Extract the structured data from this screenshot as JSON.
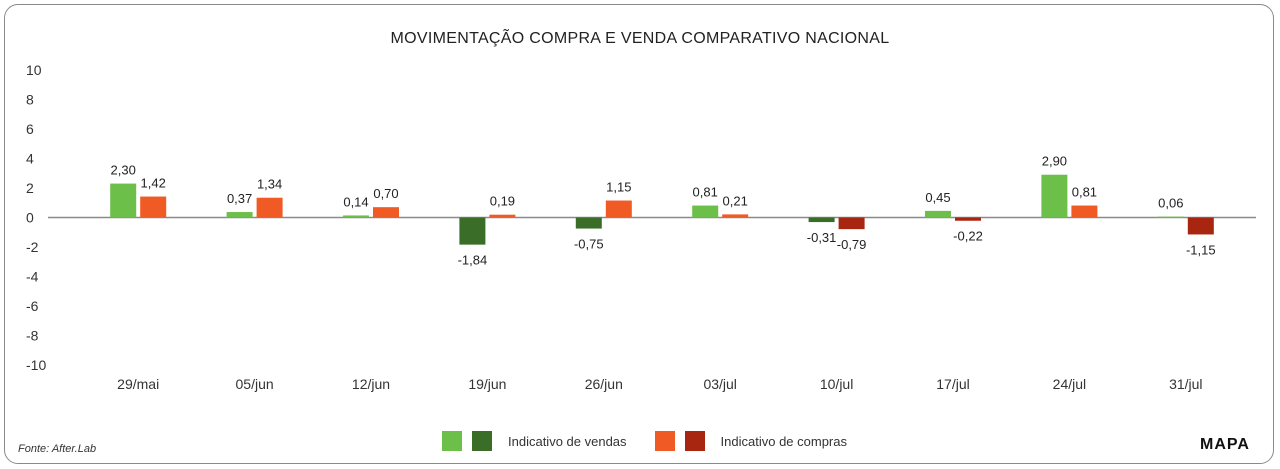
{
  "chart_data": {
    "type": "bar",
    "title": "MOVIMENTAÇÃO COMPRA E VENDA COMPARATIVO NACIONAL",
    "categories": [
      "29/mai",
      "05/jun",
      "12/jun",
      "19/jun",
      "26/jun",
      "03/jul",
      "10/jul",
      "17/jul",
      "24/jul",
      "31/jul"
    ],
    "series": [
      {
        "name": "Indicativo de vendas",
        "values": [
          2.3,
          0.37,
          0.14,
          -1.84,
          -0.75,
          0.81,
          -0.31,
          0.45,
          2.9,
          0.06
        ],
        "value_labels": [
          "2,30",
          "0,37",
          "0,14",
          "-1,84",
          "-0,75",
          "0,81",
          "-0,31",
          "0,45",
          "2,90",
          "0,06"
        ]
      },
      {
        "name": "Indicativo de compras",
        "values": [
          1.42,
          1.34,
          0.7,
          0.19,
          1.15,
          0.21,
          -0.79,
          -0.22,
          0.81,
          -1.15
        ],
        "value_labels": [
          "1,42",
          "1,34",
          "0,70",
          "0,19",
          "1,15",
          "0,21",
          "-0,79",
          "-0,22",
          "0,81",
          "-1,15"
        ]
      }
    ],
    "ylim": [
      -10,
      10
    ],
    "yticks": [
      10,
      8,
      6,
      4,
      2,
      0,
      -2,
      -4,
      -6,
      -8,
      -10
    ],
    "xlabel": "",
    "ylabel": "",
    "legend_position": "bottom"
  },
  "colors": {
    "sales_positive": "#6cc04a",
    "sales_negative": "#3a6e28",
    "purchases_positive": "#f05a24",
    "purchases_negative": "#a8260f",
    "axis": "#8a8a8a"
  },
  "legend": {
    "sales_label": "Indicativo de vendas",
    "purchases_label": "Indicativo de compras"
  },
  "footer": {
    "source": "Fonte: After.Lab",
    "brand": "MAPA"
  }
}
